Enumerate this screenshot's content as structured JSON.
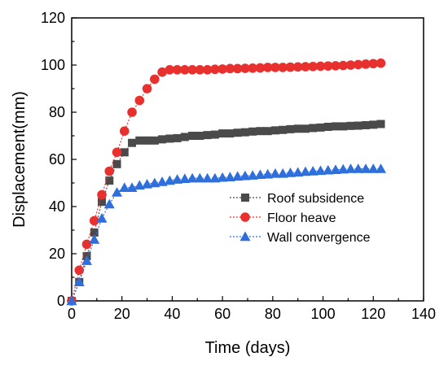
{
  "chart_data": {
    "type": "line",
    "title": "",
    "xlabel": "Time (days)",
    "ylabel": "Displacement(mm)",
    "xlim": [
      0,
      140
    ],
    "ylim": [
      0,
      120
    ],
    "x_ticks": [
      0,
      20,
      40,
      60,
      80,
      100,
      120,
      140
    ],
    "y_ticks": [
      0,
      20,
      40,
      60,
      80,
      100,
      120
    ],
    "x_tick_labels": [
      "0",
      "20",
      "40",
      "60",
      "80",
      "100",
      "120",
      "140"
    ],
    "y_tick_labels": [
      "0",
      "20",
      "40",
      "60",
      "80",
      "100",
      "120"
    ],
    "grid": false,
    "legend_position": "center-right",
    "series": [
      {
        "name": "Roof subsidence",
        "color": "#4a4a4a",
        "marker": "square",
        "line_style": "dotted",
        "x": [
          0,
          3,
          6,
          9,
          12,
          15,
          18,
          21,
          24,
          27,
          30,
          33,
          36,
          39,
          42,
          45,
          48,
          51,
          54,
          57,
          60,
          63,
          66,
          69,
          72,
          75,
          78,
          81,
          84,
          87,
          90,
          93,
          96,
          99,
          102,
          105,
          108,
          111,
          114,
          117,
          120,
          123
        ],
        "y": [
          0,
          8,
          19,
          29,
          42,
          51,
          58,
          63,
          67,
          68,
          68,
          68,
          68.5,
          68.8,
          69,
          69.5,
          70,
          70,
          70.3,
          70.5,
          71,
          71,
          71.3,
          71.5,
          71.8,
          72,
          72,
          72.3,
          72.5,
          72.8,
          73,
          73,
          73.3,
          73.5,
          73.8,
          74,
          74,
          74.2,
          74.3,
          74.5,
          74.7,
          75
        ]
      },
      {
        "name": "Floor heave",
        "color": "#e8312f",
        "marker": "circle",
        "line_style": "dotted",
        "x": [
          0,
          3,
          6,
          9,
          12,
          15,
          18,
          21,
          24,
          27,
          30,
          33,
          36,
          39,
          42,
          45,
          48,
          51,
          54,
          57,
          60,
          63,
          66,
          69,
          72,
          75,
          78,
          81,
          84,
          87,
          90,
          93,
          96,
          99,
          102,
          105,
          108,
          111,
          114,
          117,
          120,
          123
        ],
        "y": [
          0,
          13,
          24,
          34,
          45,
          55,
          63,
          72,
          80,
          85,
          90,
          94,
          97,
          98,
          98,
          98,
          98,
          98,
          98,
          98.2,
          98.3,
          98.5,
          98.5,
          98.6,
          98.7,
          98.8,
          99,
          99,
          99,
          99.1,
          99.2,
          99.3,
          99.4,
          99.5,
          99.6,
          99.7,
          99.8,
          100,
          100.2,
          100.4,
          100.6,
          100.8
        ]
      },
      {
        "name": "Wall convergence",
        "color": "#2f6fdb",
        "marker": "triangle",
        "line_style": "dotted",
        "x": [
          0,
          3,
          6,
          9,
          12,
          15,
          18,
          21,
          24,
          27,
          30,
          33,
          36,
          39,
          42,
          45,
          48,
          51,
          54,
          57,
          60,
          63,
          66,
          69,
          72,
          75,
          78,
          81,
          84,
          87,
          90,
          93,
          96,
          99,
          102,
          105,
          108,
          111,
          114,
          117,
          120,
          123
        ],
        "y": [
          0,
          8,
          17,
          26,
          35,
          41,
          46,
          48,
          48,
          49,
          49.5,
          50,
          50.5,
          51,
          51.5,
          51.8,
          52,
          52,
          52,
          52,
          52.3,
          52.5,
          52.8,
          53,
          53.2,
          53.5,
          53.7,
          54,
          54,
          54.3,
          54.5,
          54.8,
          55,
          55.2,
          55.4,
          55.6,
          55.8,
          56,
          56,
          56,
          56,
          56
        ]
      }
    ]
  }
}
